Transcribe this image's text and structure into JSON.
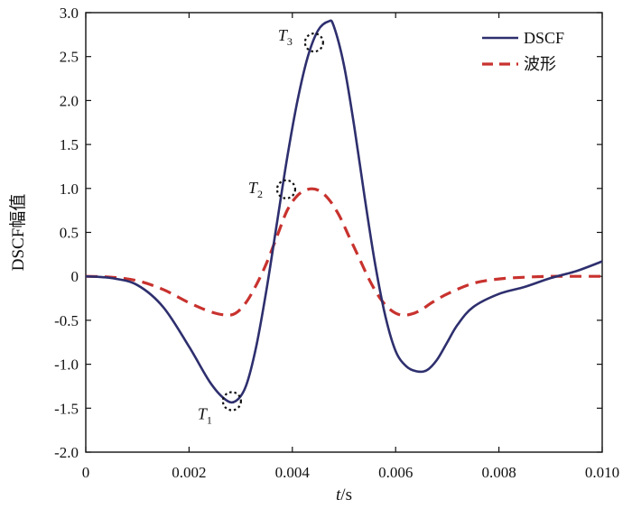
{
  "chart_data": {
    "type": "line",
    "xlabel": "t/s",
    "ylabel": "DSCF幅值",
    "xlim": [
      0,
      0.01
    ],
    "ylim": [
      -2.0,
      3.0
    ],
    "xticks": [
      0,
      0.002,
      0.004,
      0.006,
      0.008,
      0.01
    ],
    "xtick_labels": [
      "0",
      "0.002",
      "0.004",
      "0.006",
      "0.008",
      "0.010"
    ],
    "yticks": [
      3.0,
      2.5,
      2.0,
      1.5,
      1.0,
      0.5,
      0,
      -0.5,
      -1.0,
      -1.5,
      -2.0
    ],
    "ytick_labels": [
      "3.0",
      "2.5",
      "2.0",
      "1.5",
      "1.0",
      "0.5",
      "0",
      "-0.5",
      "-1.0",
      "-1.5",
      "-2.0"
    ],
    "grid": false,
    "legend_position": "top-right",
    "series": [
      {
        "name": "DSCF",
        "color": "#2e2f6e",
        "style": "solid",
        "x": [
          0,
          0.0005,
          0.001,
          0.0015,
          0.002,
          0.0024,
          0.0027,
          0.0029,
          0.0031,
          0.0033,
          0.0035,
          0.0037,
          0.0039,
          0.0041,
          0.0043,
          0.0045,
          0.0047,
          0.0048,
          0.005,
          0.0052,
          0.0054,
          0.0056,
          0.0058,
          0.006,
          0.0062,
          0.0064,
          0.0066,
          0.0068,
          0.007,
          0.0072,
          0.0075,
          0.008,
          0.0085,
          0.009,
          0.0095,
          0.01
        ],
        "values": [
          0,
          -0.02,
          -0.1,
          -0.35,
          -0.8,
          -1.2,
          -1.4,
          -1.42,
          -1.25,
          -0.8,
          -0.15,
          0.6,
          1.35,
          2.0,
          2.5,
          2.8,
          2.9,
          2.85,
          2.4,
          1.7,
          0.9,
          0.15,
          -0.45,
          -0.85,
          -1.02,
          -1.08,
          -1.07,
          -0.95,
          -0.75,
          -0.55,
          -0.35,
          -0.2,
          -0.12,
          -0.02,
          0.06,
          0.17
        ]
      },
      {
        "name": "波形",
        "color": "#c8322e",
        "style": "dashed",
        "x": [
          0,
          0.0005,
          0.001,
          0.0015,
          0.002,
          0.0024,
          0.0027,
          0.0029,
          0.0031,
          0.0033,
          0.0035,
          0.0037,
          0.0039,
          0.0041,
          0.0043,
          0.0045,
          0.0047,
          0.0049,
          0.0051,
          0.0053,
          0.0055,
          0.0057,
          0.0059,
          0.0061,
          0.0063,
          0.0065,
          0.0067,
          0.007,
          0.0075,
          0.008,
          0.0085,
          0.009,
          0.0095,
          0.01
        ],
        "values": [
          0,
          -0.01,
          -0.05,
          -0.15,
          -0.3,
          -0.4,
          -0.44,
          -0.42,
          -0.3,
          -0.1,
          0.15,
          0.45,
          0.75,
          0.92,
          0.99,
          0.98,
          0.88,
          0.7,
          0.45,
          0.2,
          -0.05,
          -0.25,
          -0.38,
          -0.44,
          -0.43,
          -0.38,
          -0.3,
          -0.2,
          -0.08,
          -0.03,
          -0.01,
          0,
          0,
          0
        ]
      }
    ],
    "annotations": [
      {
        "label": "T",
        "subscript": "1",
        "x": 0.00283,
        "y": -1.42,
        "text_side": "left-below"
      },
      {
        "label": "T",
        "subscript": "2",
        "x": 0.00388,
        "y": 0.99,
        "text_side": "left"
      },
      {
        "label": "T",
        "subscript": "3",
        "x": 0.00442,
        "y": 2.66,
        "text_side": "left-above"
      }
    ]
  }
}
